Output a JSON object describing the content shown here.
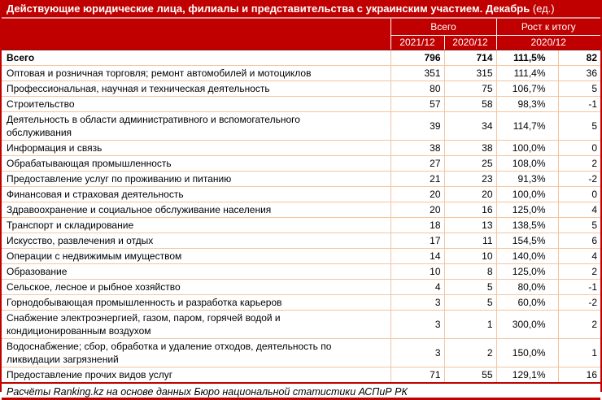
{
  "colors": {
    "accent_red": "#C00000",
    "row_border": "#F5C49E",
    "title_separator": "#D99594",
    "text": "#000000",
    "header_text": "#FFFFFF"
  },
  "chart_data": {
    "type": "table",
    "title_main": "Действующие юридические лица, филиалы и представительства с украинским участием. Декабрь",
    "title_unit": "(ед.)",
    "header": {
      "group_total": "Всего",
      "group_growth": "Рост к итогу",
      "sub_2021": "2021/12",
      "sub_2020": "2020/12",
      "sub_growth_period": "2020/12"
    },
    "rows": [
      {
        "label": "Всего",
        "v2021": 796,
        "v2020": 714,
        "growth": "111,5%",
        "diff": 82,
        "bold": true
      },
      {
        "label": "Оптовая и розничная торговля; ремонт автомобилей и мотоциклов",
        "v2021": 351,
        "v2020": 315,
        "growth": "111,4%",
        "diff": 36,
        "bold": false
      },
      {
        "label": "Профессиональная, научная и техническая деятельность",
        "v2021": 80,
        "v2020": 75,
        "growth": "106,7%",
        "diff": 5,
        "bold": false
      },
      {
        "label": "Строительство",
        "v2021": 57,
        "v2020": 58,
        "growth": "98,3%",
        "diff": -1,
        "bold": false
      },
      {
        "label": "Деятельность в области административного и вспомогательного\nобслуживания",
        "v2021": 39,
        "v2020": 34,
        "growth": "114,7%",
        "diff": 5,
        "bold": false
      },
      {
        "label": "Информация и связь",
        "v2021": 38,
        "v2020": 38,
        "growth": "100,0%",
        "diff": 0,
        "bold": false
      },
      {
        "label": "Обрабатывающая промышленность",
        "v2021": 27,
        "v2020": 25,
        "growth": "108,0%",
        "diff": 2,
        "bold": false
      },
      {
        "label": "Предоставление услуг по проживанию и питанию",
        "v2021": 21,
        "v2020": 23,
        "growth": "91,3%",
        "diff": -2,
        "bold": false
      },
      {
        "label": "Финансовая и страховая деятельность",
        "v2021": 20,
        "v2020": 20,
        "growth": "100,0%",
        "diff": 0,
        "bold": false
      },
      {
        "label": "Здравоохранение и социальное обслуживание населения",
        "v2021": 20,
        "v2020": 16,
        "growth": "125,0%",
        "diff": 4,
        "bold": false
      },
      {
        "label": "Транспорт и складирование",
        "v2021": 18,
        "v2020": 13,
        "growth": "138,5%",
        "diff": 5,
        "bold": false
      },
      {
        "label": "Искусство, развлечения и отдых",
        "v2021": 17,
        "v2020": 11,
        "growth": "154,5%",
        "diff": 6,
        "bold": false
      },
      {
        "label": "Операции с недвижимым имуществом",
        "v2021": 14,
        "v2020": 10,
        "growth": "140,0%",
        "diff": 4,
        "bold": false
      },
      {
        "label": "Образование",
        "v2021": 10,
        "v2020": 8,
        "growth": "125,0%",
        "diff": 2,
        "bold": false
      },
      {
        "label": "Сельское, лесное и рыбное хозяйство",
        "v2021": 4,
        "v2020": 5,
        "growth": "80,0%",
        "diff": -1,
        "bold": false
      },
      {
        "label": "Горнодобывающая промышленность и разработка карьеров",
        "v2021": 3,
        "v2020": 5,
        "growth": "60,0%",
        "diff": -2,
        "bold": false
      },
      {
        "label": "Снабжение электроэнергией, газом, паром, горячей водой и\nкондиционированным воздухом",
        "v2021": 3,
        "v2020": 1,
        "growth": "300,0%",
        "diff": 2,
        "bold": false
      },
      {
        "label": "Водоснабжение; сбор, обработка и удаление отходов, деятельность по\nликвидации загрязнений",
        "v2021": 3,
        "v2020": 2,
        "growth": "150,0%",
        "diff": 1,
        "bold": false
      },
      {
        "label": "Предоставление прочих видов услуг",
        "v2021": 71,
        "v2020": 55,
        "growth": "129,1%",
        "diff": 16,
        "bold": false
      }
    ],
    "footer_note": "Расчёты Ranking.kz на основе данных Бюро национальной статистики АСПиР РК"
  }
}
